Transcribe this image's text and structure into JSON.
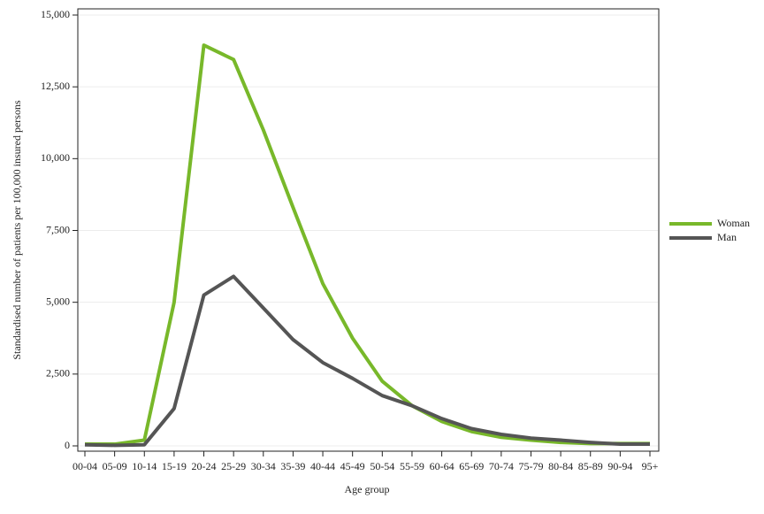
{
  "chart_data": {
    "type": "line",
    "x_label": "Age group",
    "y_label": "Standardised number of patients per 100,000 insured persons",
    "categories": [
      "00-04",
      "05-09",
      "10-14",
      "15-19",
      "20-24",
      "25-29",
      "30-34",
      "35-39",
      "40-44",
      "45-49",
      "50-54",
      "55-59",
      "60-64",
      "65-69",
      "70-74",
      "75-79",
      "80-84",
      "85-89",
      "90-94",
      "95+"
    ],
    "series": [
      {
        "name": "Woman",
        "color": "#78b82a",
        "values": [
          60,
          60,
          200,
          5000,
          13950,
          13450,
          11000,
          8300,
          5650,
          3750,
          2250,
          1400,
          850,
          500,
          300,
          200,
          120,
          80,
          80,
          80
        ]
      },
      {
        "name": "Man",
        "color": "#555555",
        "values": [
          40,
          20,
          40,
          1300,
          5250,
          5900,
          4800,
          3700,
          2900,
          2350,
          1750,
          1400,
          950,
          600,
          400,
          270,
          200,
          120,
          60,
          60
        ]
      }
    ],
    "ylim": [
      0,
      15000
    ],
    "yticks": [
      0,
      {
        "value": 2500,
        "label": "2,500"
      },
      {
        "value": 5000,
        "label": "5,000"
      },
      {
        "value": 7500,
        "label": "7,500"
      },
      {
        "value": 10000,
        "label": "10,000"
      },
      {
        "value": 12500,
        "label": "12,500"
      },
      {
        "value": 15000,
        "label": "15,000"
      }
    ],
    "grid": true,
    "legend": "right"
  }
}
